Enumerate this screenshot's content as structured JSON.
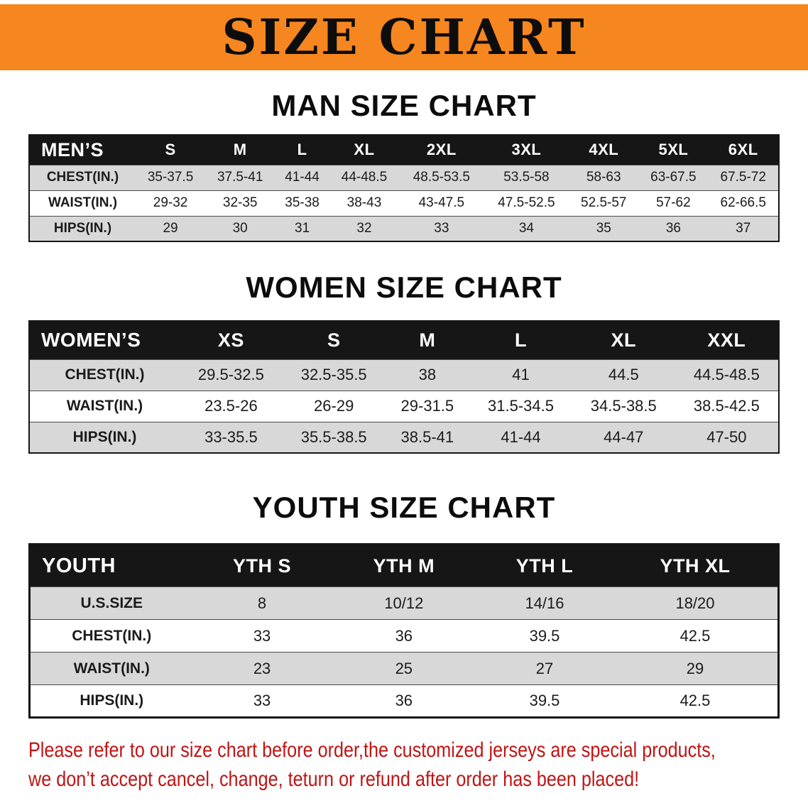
{
  "banner": {
    "title": "SIZE CHART"
  },
  "chart_data": [
    {
      "type": "table",
      "title": "MAN SIZE CHART",
      "corner_label": "MEN’S",
      "columns": [
        "S",
        "M",
        "L",
        "XL",
        "2XL",
        "3XL",
        "4XL",
        "5XL",
        "6XL"
      ],
      "rows": [
        {
          "label": "CHEST(IN.)",
          "values": [
            "35-37.5",
            "37.5-41",
            "41-44",
            "44-48.5",
            "48.5-53.5",
            "53.5-58",
            "58-63",
            "63-67.5",
            "67.5-72"
          ]
        },
        {
          "label": "WAIST(IN.)",
          "values": [
            "29-32",
            "32-35",
            "35-38",
            "38-43",
            "43-47.5",
            "47.5-52.5",
            "52.5-57",
            "57-62",
            "62-66.5"
          ]
        },
        {
          "label": "HIPS(IN.)",
          "values": [
            "29",
            "30",
            "31",
            "32",
            "33",
            "34",
            "35",
            "36",
            "37"
          ]
        }
      ]
    },
    {
      "type": "table",
      "title": "WOMEN SIZE CHART",
      "corner_label": "WOMEN’S",
      "columns": [
        "XS",
        "S",
        "M",
        "L",
        "XL",
        "XXL"
      ],
      "rows": [
        {
          "label": "CHEST(IN.)",
          "values": [
            "29.5-32.5",
            "32.5-35.5",
            "38",
            "41",
            "44.5",
            "44.5-48.5"
          ]
        },
        {
          "label": "WAIST(IN.)",
          "values": [
            "23.5-26",
            "26-29",
            "29-31.5",
            "31.5-34.5",
            "34.5-38.5",
            "38.5-42.5"
          ]
        },
        {
          "label": "HIPS(IN.)",
          "values": [
            "33-35.5",
            "35.5-38.5",
            "38.5-41",
            "41-44",
            "44-47",
            "47-50"
          ]
        }
      ]
    },
    {
      "type": "table",
      "title": "YOUTH SIZE CHART",
      "corner_label": "YOUTH",
      "columns": [
        "YTH S",
        "YTH M",
        "YTH L",
        "YTH XL"
      ],
      "rows": [
        {
          "label": "U.S.SIZE",
          "values": [
            "8",
            "10/12",
            "14/16",
            "18/20"
          ]
        },
        {
          "label": "CHEST(IN.)",
          "values": [
            "33",
            "36",
            "39.5",
            "42.5"
          ]
        },
        {
          "label": "WAIST(IN.)",
          "values": [
            "23",
            "25",
            "27",
            "29"
          ]
        },
        {
          "label": "HIPS(IN.)",
          "values": [
            "33",
            "36",
            "39.5",
            "42.5"
          ]
        }
      ]
    }
  ],
  "disclaimer": {
    "line1": "Please refer to our size chart before order,the customized jerseys are special products,",
    "line2": "we don’t accept cancel, change, teturn or refund after order has been placed!"
  },
  "colors": {
    "banner_bg": "#f6861f",
    "header_bg": "#161616",
    "stripe": "#d8d8d8",
    "disclaimer_red": "#c01414"
  }
}
